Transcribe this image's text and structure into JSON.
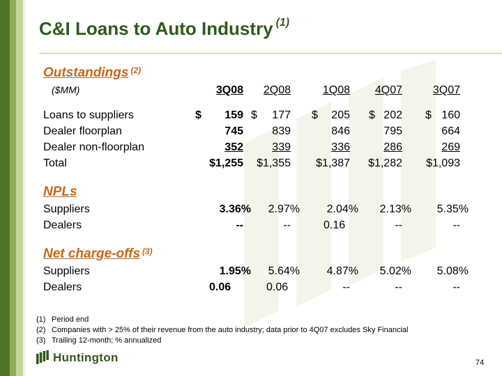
{
  "title": {
    "text": "C&I Loans to Auto Industry",
    "sup": "(1)"
  },
  "outstandings": {
    "heading": "Outstandings",
    "heading_sup": "(2)",
    "units": "($MM)",
    "columns": [
      "3Q08",
      "2Q08",
      "1Q08",
      "4Q07",
      "3Q07"
    ],
    "rows": [
      {
        "label": "Loans to suppliers",
        "dollar": "$",
        "values": [
          "159",
          "177",
          "205",
          "202",
          "160"
        ]
      },
      {
        "label": "Dealer floorplan",
        "values": [
          "745",
          "839",
          "846",
          "795",
          "664"
        ]
      },
      {
        "label": "Dealer non-floorplan",
        "values": [
          "352",
          "339",
          "336",
          "286",
          "269"
        ]
      },
      {
        "label": "Total",
        "values": [
          "$1,255",
          "$1,355",
          "$1,387",
          "$1,282",
          "$1,093"
        ]
      }
    ]
  },
  "npls": {
    "heading": "NPLs",
    "rows": [
      {
        "label": "Suppliers",
        "values": [
          "3.36%",
          "2.97%",
          "2.04%",
          "2.13%",
          "5.35%"
        ]
      },
      {
        "label": "Dealers",
        "values": [
          "--",
          "--",
          "0.16",
          "--",
          "--"
        ]
      }
    ]
  },
  "chargeoffs": {
    "heading": "Net charge-offs",
    "heading_sup": "(3)",
    "rows": [
      {
        "label": "Suppliers",
        "values": [
          "1.95%",
          "5.64%",
          "4.87%",
          "5.02%",
          "5.08%"
        ]
      },
      {
        "label": "Dealers",
        "values": [
          "0.06",
          "0.06",
          "--",
          "--",
          "--"
        ]
      }
    ]
  },
  "footnotes": [
    {
      "num": "(1)",
      "text": "Period end"
    },
    {
      "num": "(2)",
      "text": "Companies with > 25% of their revenue from the auto industry; data prior to 4Q07 excludes Sky Financial"
    },
    {
      "num": "(3)",
      "text": "Trailing 12-month; % annualized"
    }
  ],
  "logo": {
    "text": "Huntington",
    "icon": "huntington-logo-icon"
  },
  "page_number": "74",
  "colors": {
    "title": "#2f5a1a",
    "section": "#c8661a",
    "stripe_dark": "#4f7527",
    "stripe_mid": "#8fae5b",
    "stripe_light": "#c4d49c"
  }
}
